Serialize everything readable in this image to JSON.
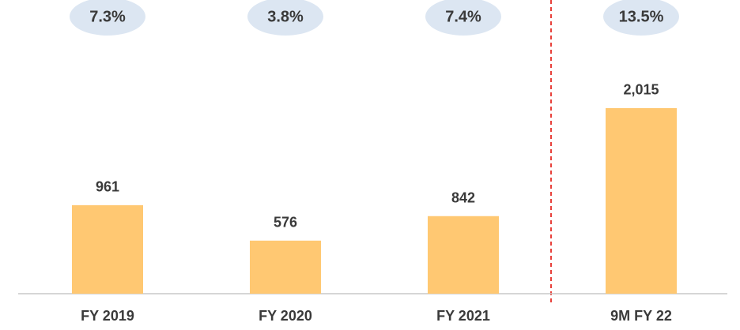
{
  "chart_data": {
    "type": "bar",
    "categories": [
      "FY 2019",
      "FY 2020",
      "FY 2021",
      "9M FY 22"
    ],
    "values": [
      961,
      576,
      842,
      2015
    ],
    "value_labels": [
      "961",
      "576",
      "842",
      "2,015"
    ],
    "annotations": [
      "7.3%",
      "3.8%",
      "7.4%",
      "13.5%"
    ],
    "color": "#ffc872",
    "ylim": [
      0,
      3000
    ]
  }
}
